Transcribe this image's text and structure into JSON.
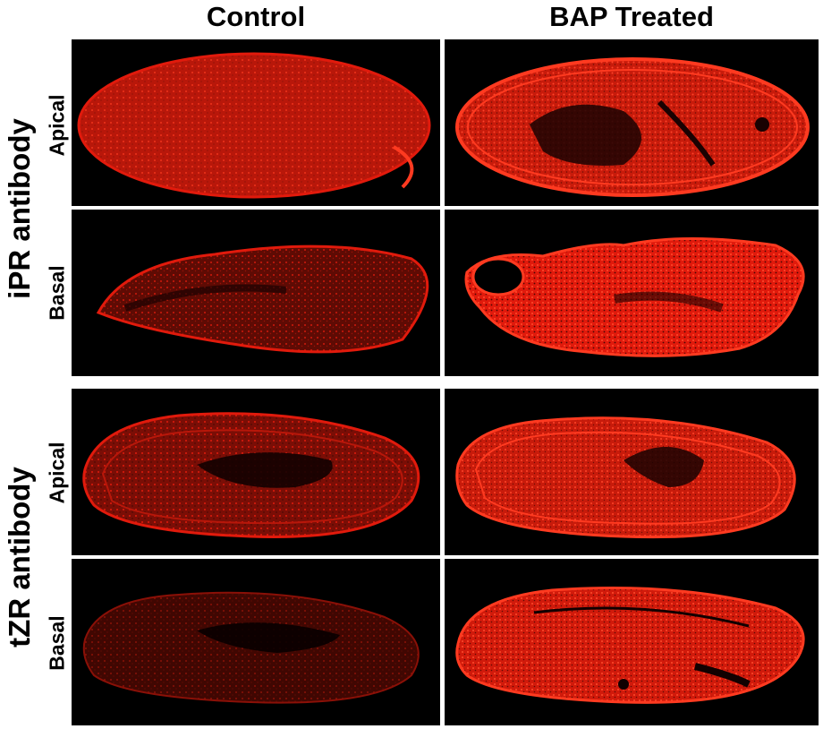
{
  "columns": [
    "Control",
    "BAP Treated"
  ],
  "groups": [
    "iPR antibody",
    "tZR antibody"
  ],
  "rows": [
    "Apical",
    "Basal",
    "Apical",
    "Basal"
  ],
  "colors": {
    "background": "#000000",
    "signal": "#e11a0c",
    "signal_bright": "#ff3a20",
    "signal_dim": "#6e0d05"
  }
}
